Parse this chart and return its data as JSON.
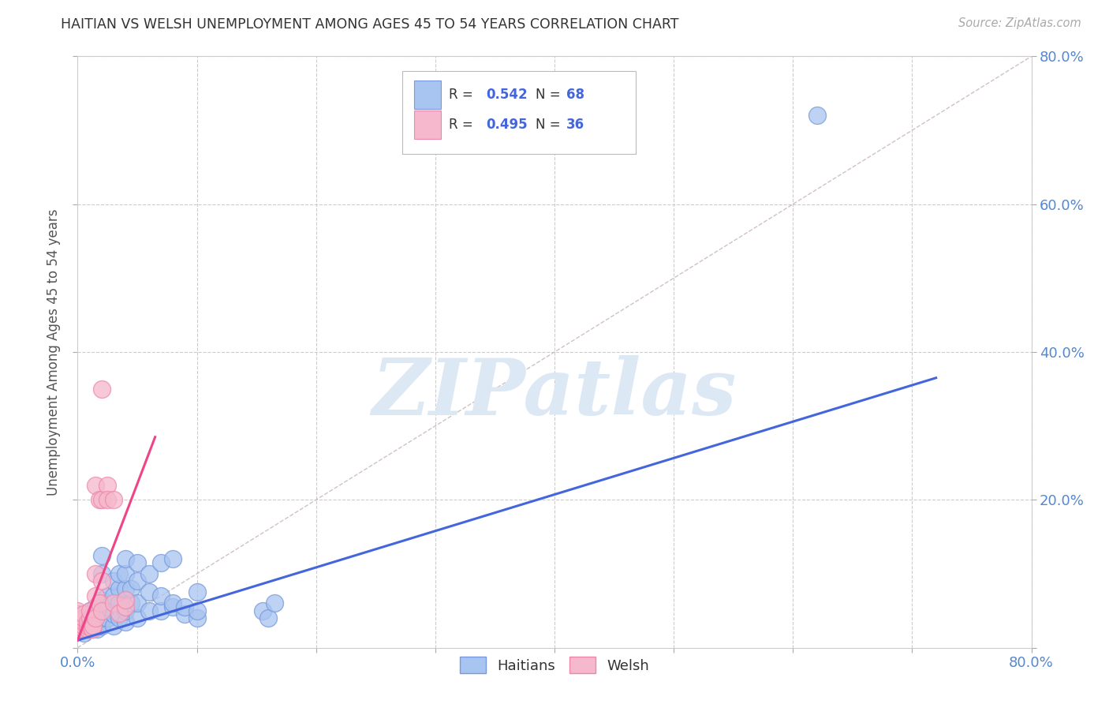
{
  "title": "HAITIAN VS WELSH UNEMPLOYMENT AMONG AGES 45 TO 54 YEARS CORRELATION CHART",
  "source": "Source: ZipAtlas.com",
  "ylabel": "Unemployment Among Ages 45 to 54 years",
  "xlim": [
    0.0,
    0.8
  ],
  "ylim": [
    0.0,
    0.8
  ],
  "background_color": "#ffffff",
  "grid_color": "#cccccc",
  "watermark_text": "ZIPatlas",
  "haitian_color_face": "#a8c4f0",
  "haitian_color_edge": "#7799dd",
  "welsh_color_face": "#f5b8cc",
  "welsh_color_edge": "#ee88aa",
  "haitian_line_color": "#4466dd",
  "welsh_line_color": "#ee4488",
  "diagonal_color": "#ccbbbb",
  "title_color": "#333333",
  "tick_label_color": "#5588cc",
  "source_color": "#aaaaaa",
  "legend_r_color": "#4466dd",
  "legend_n_color": "#ee6600",
  "haitian_scatter": [
    [
      0.0,
      0.025
    ],
    [
      0.0,
      0.03
    ],
    [
      0.0,
      0.035
    ],
    [
      0.0,
      0.04
    ],
    [
      0.0,
      0.045
    ],
    [
      0.005,
      0.02
    ],
    [
      0.005,
      0.03
    ],
    [
      0.005,
      0.035
    ],
    [
      0.005,
      0.04
    ],
    [
      0.008,
      0.025
    ],
    [
      0.008,
      0.03
    ],
    [
      0.01,
      0.025
    ],
    [
      0.01,
      0.03
    ],
    [
      0.01,
      0.035
    ],
    [
      0.01,
      0.04
    ],
    [
      0.01,
      0.05
    ],
    [
      0.012,
      0.03
    ],
    [
      0.013,
      0.035
    ],
    [
      0.015,
      0.04
    ],
    [
      0.015,
      0.055
    ],
    [
      0.016,
      0.025
    ],
    [
      0.018,
      0.03
    ],
    [
      0.02,
      0.03
    ],
    [
      0.02,
      0.04
    ],
    [
      0.02,
      0.065
    ],
    [
      0.02,
      0.1
    ],
    [
      0.02,
      0.125
    ],
    [
      0.025,
      0.04
    ],
    [
      0.025,
      0.055
    ],
    [
      0.025,
      0.07
    ],
    [
      0.03,
      0.03
    ],
    [
      0.03,
      0.045
    ],
    [
      0.03,
      0.07
    ],
    [
      0.03,
      0.09
    ],
    [
      0.035,
      0.04
    ],
    [
      0.035,
      0.06
    ],
    [
      0.035,
      0.08
    ],
    [
      0.035,
      0.1
    ],
    [
      0.04,
      0.035
    ],
    [
      0.04,
      0.05
    ],
    [
      0.04,
      0.08
    ],
    [
      0.04,
      0.1
    ],
    [
      0.04,
      0.12
    ],
    [
      0.045,
      0.06
    ],
    [
      0.045,
      0.08
    ],
    [
      0.05,
      0.04
    ],
    [
      0.05,
      0.06
    ],
    [
      0.05,
      0.09
    ],
    [
      0.05,
      0.115
    ],
    [
      0.06,
      0.05
    ],
    [
      0.06,
      0.075
    ],
    [
      0.06,
      0.1
    ],
    [
      0.07,
      0.05
    ],
    [
      0.07,
      0.07
    ],
    [
      0.07,
      0.115
    ],
    [
      0.08,
      0.055
    ],
    [
      0.08,
      0.06
    ],
    [
      0.08,
      0.12
    ],
    [
      0.09,
      0.045
    ],
    [
      0.09,
      0.055
    ],
    [
      0.1,
      0.04
    ],
    [
      0.1,
      0.05
    ],
    [
      0.1,
      0.075
    ],
    [
      0.155,
      0.05
    ],
    [
      0.16,
      0.04
    ],
    [
      0.165,
      0.06
    ],
    [
      0.62,
      0.72
    ]
  ],
  "welsh_scatter": [
    [
      0.0,
      0.025
    ],
    [
      0.0,
      0.03
    ],
    [
      0.0,
      0.035
    ],
    [
      0.0,
      0.04
    ],
    [
      0.0,
      0.045
    ],
    [
      0.0,
      0.05
    ],
    [
      0.005,
      0.025
    ],
    [
      0.005,
      0.03
    ],
    [
      0.005,
      0.035
    ],
    [
      0.005,
      0.04
    ],
    [
      0.005,
      0.045
    ],
    [
      0.008,
      0.025
    ],
    [
      0.008,
      0.03
    ],
    [
      0.008,
      0.035
    ],
    [
      0.01,
      0.03
    ],
    [
      0.01,
      0.04
    ],
    [
      0.01,
      0.05
    ],
    [
      0.012,
      0.025
    ],
    [
      0.013,
      0.03
    ],
    [
      0.015,
      0.04
    ],
    [
      0.015,
      0.07
    ],
    [
      0.015,
      0.1
    ],
    [
      0.015,
      0.22
    ],
    [
      0.018,
      0.06
    ],
    [
      0.018,
      0.2
    ],
    [
      0.02,
      0.05
    ],
    [
      0.02,
      0.09
    ],
    [
      0.02,
      0.2
    ],
    [
      0.02,
      0.35
    ],
    [
      0.025,
      0.22
    ],
    [
      0.025,
      0.2
    ],
    [
      0.03,
      0.06
    ],
    [
      0.03,
      0.2
    ],
    [
      0.035,
      0.047
    ],
    [
      0.04,
      0.055
    ],
    [
      0.04,
      0.065
    ]
  ],
  "haitian_line_x": [
    0.0,
    0.72
  ],
  "haitian_line_y": [
    0.01,
    0.365
  ],
  "welsh_line_x": [
    0.0,
    0.065
  ],
  "welsh_line_y": [
    0.01,
    0.285
  ]
}
